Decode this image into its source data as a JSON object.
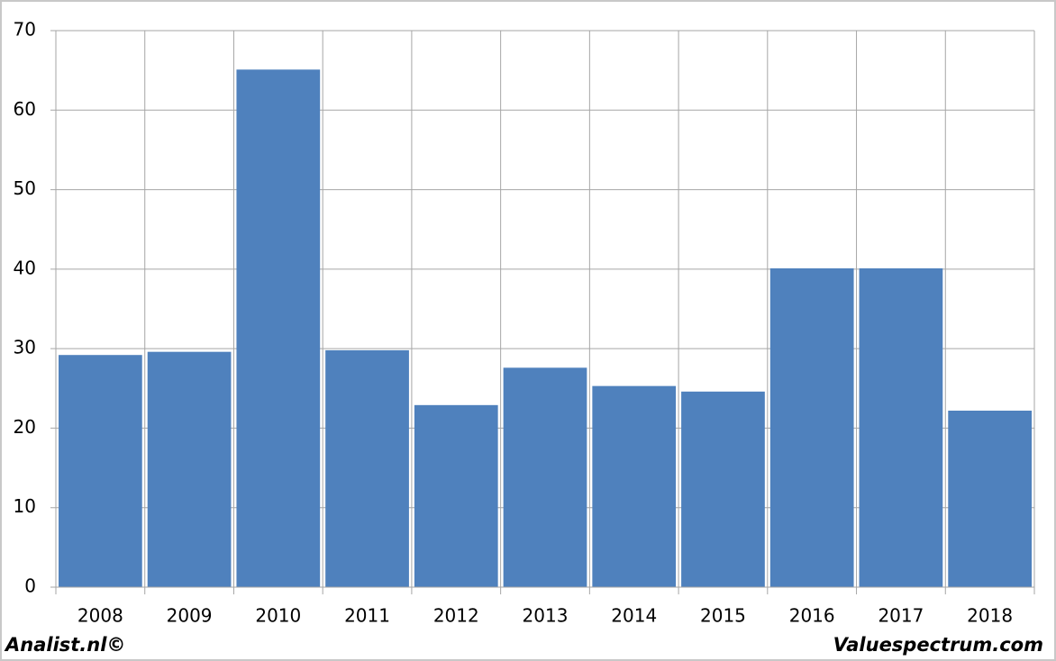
{
  "chart_data": {
    "type": "bar",
    "categories": [
      "2008",
      "2009",
      "2010",
      "2011",
      "2012",
      "2013",
      "2014",
      "2015",
      "2016",
      "2017",
      "2018"
    ],
    "values": [
      29.2,
      29.6,
      65.1,
      29.8,
      22.9,
      27.6,
      25.3,
      24.6,
      40.1,
      40.1,
      22.2
    ],
    "color": "#4f81bd",
    "ylim": [
      0,
      70
    ],
    "yticks": [
      0,
      10,
      20,
      30,
      40,
      50,
      60,
      70
    ],
    "grid": true,
    "annotations": [
      "Analist.nl©",
      "Valuespectrum.com"
    ]
  }
}
